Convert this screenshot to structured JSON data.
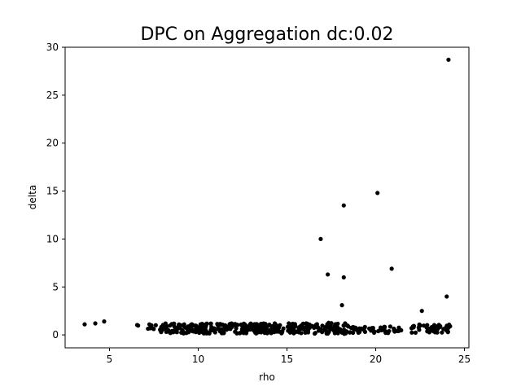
{
  "chart_data": {
    "type": "scatter",
    "title": "DPC on Aggregation  dc:0.02",
    "xlabel": "rho",
    "ylabel": "delta",
    "xlim": [
      2.5,
      25.25
    ],
    "ylim": [
      -1.35,
      30
    ],
    "xticks": [
      5,
      10,
      15,
      20,
      25
    ],
    "yticks": [
      0,
      5,
      10,
      15,
      20,
      25,
      30
    ],
    "grid": false,
    "marker_color": "#000000",
    "outliers": [
      {
        "x": 3.6,
        "y": 1.1
      },
      {
        "x": 4.2,
        "y": 1.2
      },
      {
        "x": 4.7,
        "y": 1.4
      },
      {
        "x": 16.9,
        "y": 10.0
      },
      {
        "x": 17.3,
        "y": 6.3
      },
      {
        "x": 18.1,
        "y": 3.1
      },
      {
        "x": 18.2,
        "y": 13.5
      },
      {
        "x": 18.2,
        "y": 6.0
      },
      {
        "x": 20.1,
        "y": 14.8
      },
      {
        "x": 20.9,
        "y": 6.9
      },
      {
        "x": 22.6,
        "y": 2.5
      },
      {
        "x": 24.0,
        "y": 4.0
      },
      {
        "x": 24.1,
        "y": 28.7
      }
    ],
    "dense_segments": [
      {
        "x_start": 6.3,
        "x_end": 7.8,
        "y_min": 0.5,
        "y_max": 1.1,
        "count": 10
      },
      {
        "x_start": 7.8,
        "x_end": 16.0,
        "y_min": 0.15,
        "y_max": 1.2,
        "count": 300
      },
      {
        "x_start": 16.0,
        "x_end": 18.5,
        "y_min": 0.1,
        "y_max": 1.3,
        "count": 80
      },
      {
        "x_start": 18.5,
        "x_end": 21.5,
        "y_min": 0.2,
        "y_max": 0.9,
        "count": 55
      },
      {
        "x_start": 22.0,
        "x_end": 24.2,
        "y_min": 0.2,
        "y_max": 1.1,
        "count": 55
      }
    ]
  }
}
